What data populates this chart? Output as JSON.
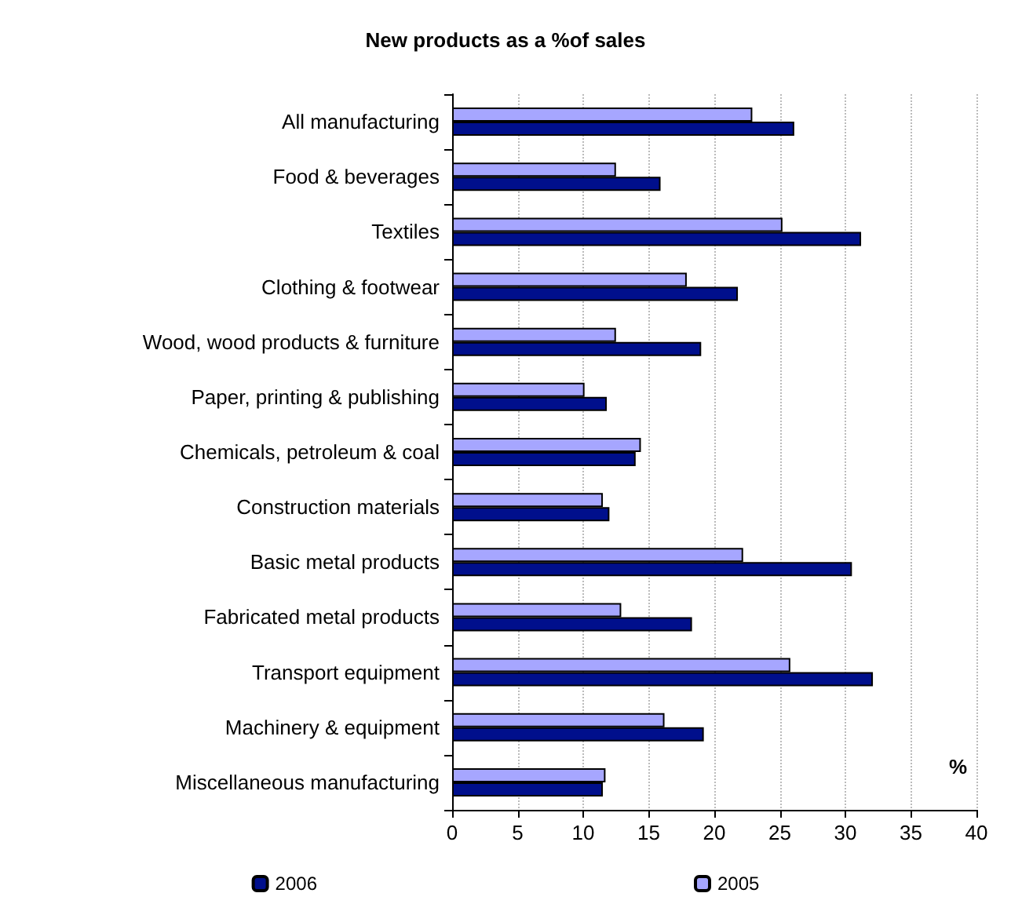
{
  "chart_data": {
    "type": "bar",
    "orientation": "horizontal",
    "title": "New products as a %of sales",
    "categories": [
      "All manufacturing",
      "Food & beverages",
      "Textiles",
      "Clothing & footwear",
      "Wood, wood products & furniture",
      "Paper, printing & publishing",
      "Chemicals, petroleum & coal",
      "Construction materials",
      "Basic metal products",
      "Fabricated metal products",
      "Transport equipment",
      "Machinery & equipment",
      "Miscellaneous manufacturing"
    ],
    "series": [
      {
        "name": "2006",
        "color": "#000f8c",
        "values": [
          26.1,
          15.9,
          31.2,
          21.8,
          19.0,
          11.8,
          14.0,
          12.0,
          30.5,
          18.3,
          32.1,
          19.2,
          11.5
        ]
      },
      {
        "name": "2005",
        "color": "#a6a6ff",
        "values": [
          22.9,
          12.5,
          25.2,
          17.9,
          12.5,
          10.1,
          14.4,
          11.5,
          22.2,
          12.9,
          25.8,
          16.2,
          11.7
        ]
      }
    ],
    "xlim": [
      0,
      40
    ],
    "xticks": [
      0,
      5,
      10,
      15,
      20,
      25,
      30,
      35,
      40
    ],
    "grid": "x",
    "legend": "bottom",
    "annotations": [
      "%"
    ]
  }
}
